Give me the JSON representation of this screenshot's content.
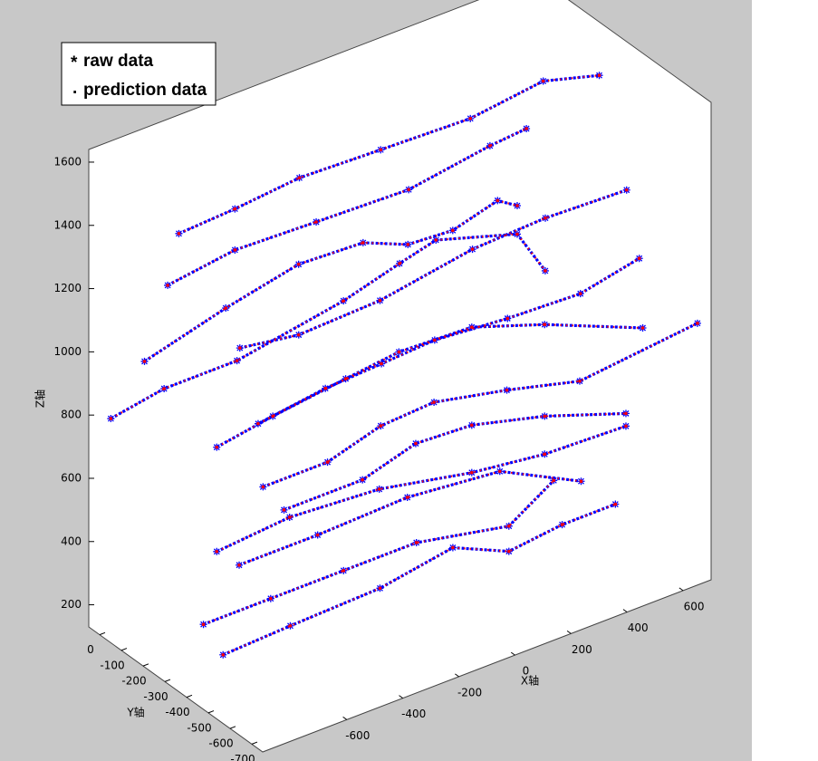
{
  "chart_data": {
    "type": "scatter3d",
    "xlabel": "X轴",
    "ylabel": "Y轴",
    "zlabel": "Z轴",
    "xlim": [
      -900,
      700
    ],
    "ylim": [
      -750,
      50
    ],
    "zlim": [
      130,
      1640
    ],
    "xticks": [
      -600,
      -400,
      -200,
      0,
      200,
      400,
      600
    ],
    "yticks": [
      0,
      -100,
      -200,
      -300,
      -400,
      -500,
      -600,
      -700
    ],
    "zticks": [
      200,
      400,
      600,
      800,
      1000,
      1200,
      1400,
      1600
    ],
    "legend": "northwest",
    "series": [
      {
        "name": "raw data",
        "marker": "*",
        "color": "#0000ff",
        "legend_color": "#1e9fd8",
        "x": [
          -850,
          -650,
          -420,
          -130,
          190,
          450,
          650,
          null,
          -890,
          -650,
          -360,
          -30,
          260,
          390,
          null,
          -740,
          -450,
          -190,
          40,
          200,
          360,
          520,
          590,
          null,
          -710,
          -500,
          -210,
          120,
          380,
          670,
          null,
          -860,
          -670,
          -410,
          -30,
          170,
          300,
          590,
          690,
          null,
          -800,
          -560,
          -360,
          -170,
          90,
          350,
          560,
          null,
          -870,
          -670,
          -410,
          -220,
          40,
          300,
          650,
          null,
          -860,
          -630,
          -440,
          -250,
          10,
          270,
          690,
          null,
          -630,
          -350,
          -160,
          40,
          300,
          590,
          null,
          -870,
          -610,
          -290,
          40,
          300,
          590,
          null,
          -790,
          -510,
          -190,
          140,
          430,
          null,
          -840,
          -600,
          -340,
          -80,
          250,
          410,
          null,
          -770,
          -530,
          -210,
          50,
          250,
          440,
          630
        ],
        "y": [
          -300,
          -300,
          -300,
          -300,
          -300,
          -300,
          -300,
          null,
          -300,
          -300,
          -300,
          -300,
          -300,
          -300,
          null,
          0,
          0,
          0,
          0,
          0,
          0,
          0,
          0,
          null,
          -400,
          -400,
          -400,
          -400,
          -400,
          -400,
          null,
          0,
          0,
          0,
          0,
          0,
          0,
          0,
          0,
          null,
          -600,
          -600,
          -600,
          -600,
          -600,
          -600,
          -600,
          null,
          -500,
          -500,
          -500,
          -500,
          -500,
          -500,
          -500,
          null,
          -700,
          -700,
          -700,
          -700,
          -700,
          -700,
          -700,
          null,
          -500,
          -500,
          -500,
          -500,
          -500,
          -500,
          null,
          -500,
          -500,
          -500,
          -500,
          -500,
          -500,
          null,
          -500,
          -500,
          -500,
          -500,
          -500,
          null,
          -400,
          -400,
          -400,
          -400,
          -400,
          -400,
          null,
          -400,
          -400,
          -400,
          -400,
          -400,
          -400,
          -400
        ],
        "z": [
          1530,
          1540,
          1560,
          1550,
          1540,
          1570,
          1520,
          null,
          1380,
          1410,
          1400,
          1390,
          1430,
          1440,
          null,
          940,
          1010,
          1060,
          1050,
          990,
          980,
          1020,
          980,
          null,
          1170,
          1140,
          1150,
          1200,
          1210,
          1200,
          null,
          800,
          830,
          830,
          890,
          940,
          970,
          890,
          740,
          null,
          1060,
          1090,
          1100,
          1110,
          1090,
          1080,
          1120,
          null,
          960,
          990,
          1020,
          1040,
          1030,
          950,
          820,
          null,
          930,
          930,
          980,
          990,
          940,
          880,
          920,
          null,
          680,
          680,
          730,
          720,
          660,
          570,
          null,
          630,
          650,
          630,
          570,
          540,
          530,
          null,
          560,
          560,
          570,
          540,
          410,
          null,
          340,
          340,
          340,
          340,
          280,
          370,
          null,
          220,
          230,
          240,
          280,
          200,
          220,
          220
        ]
      },
      {
        "name": "prediction data",
        "marker": ".",
        "color": "#ff0000",
        "legend_color": "#ff0000",
        "x": [
          -850,
          -650,
          -420,
          -130,
          190,
          450,
          650,
          null,
          -890,
          -650,
          -360,
          -30,
          260,
          390,
          null,
          -740,
          -450,
          -190,
          40,
          200,
          360,
          520,
          590,
          null,
          -710,
          -500,
          -210,
          120,
          380,
          670,
          null,
          -860,
          -670,
          -410,
          -30,
          170,
          300,
          590,
          690,
          null,
          -800,
          -560,
          -360,
          -170,
          90,
          350,
          560,
          null,
          -870,
          -670,
          -410,
          -220,
          40,
          300,
          650,
          null,
          -860,
          -630,
          -440,
          -250,
          10,
          270,
          690,
          null,
          -630,
          -350,
          -160,
          40,
          300,
          590,
          null,
          -870,
          -610,
          -290,
          40,
          300,
          590,
          null,
          -790,
          -510,
          -190,
          140,
          430,
          null,
          -840,
          -600,
          -340,
          -80,
          250,
          410,
          null,
          -770,
          -530,
          -210,
          50,
          250,
          440,
          630
        ],
        "y": [
          -300,
          -300,
          -300,
          -300,
          -300,
          -300,
          -300,
          null,
          -300,
          -300,
          -300,
          -300,
          -300,
          -300,
          null,
          0,
          0,
          0,
          0,
          0,
          0,
          0,
          0,
          null,
          -400,
          -400,
          -400,
          -400,
          -400,
          -400,
          null,
          0,
          0,
          0,
          0,
          0,
          0,
          0,
          0,
          null,
          -600,
          -600,
          -600,
          -600,
          -600,
          -600,
          -600,
          null,
          -500,
          -500,
          -500,
          -500,
          -500,
          -500,
          -500,
          null,
          -700,
          -700,
          -700,
          -700,
          -700,
          -700,
          -700,
          null,
          -500,
          -500,
          -500,
          -500,
          -500,
          -500,
          null,
          -500,
          -500,
          -500,
          -500,
          -500,
          -500,
          null,
          -500,
          -500,
          -500,
          -500,
          -500,
          null,
          -400,
          -400,
          -400,
          -400,
          -400,
          -400,
          null,
          -400,
          -400,
          -400,
          -400,
          -400,
          -400,
          -400
        ],
        "z": [
          1530,
          1540,
          1560,
          1550,
          1540,
          1570,
          1520,
          null,
          1380,
          1410,
          1400,
          1390,
          1430,
          1440,
          null,
          940,
          1010,
          1060,
          1050,
          990,
          980,
          1020,
          980,
          null,
          1170,
          1140,
          1150,
          1200,
          1210,
          1200,
          null,
          800,
          830,
          830,
          890,
          940,
          970,
          890,
          740,
          null,
          1060,
          1090,
          1100,
          1110,
          1090,
          1080,
          1120,
          null,
          960,
          990,
          1020,
          1040,
          1030,
          950,
          820,
          null,
          930,
          930,
          980,
          990,
          940,
          880,
          920,
          null,
          680,
          680,
          730,
          720,
          660,
          570,
          null,
          630,
          650,
          630,
          570,
          540,
          530,
          null,
          560,
          560,
          570,
          540,
          410,
          null,
          340,
          340,
          340,
          340,
          280,
          370,
          null,
          220,
          230,
          240,
          280,
          200,
          220,
          220
        ]
      }
    ]
  }
}
